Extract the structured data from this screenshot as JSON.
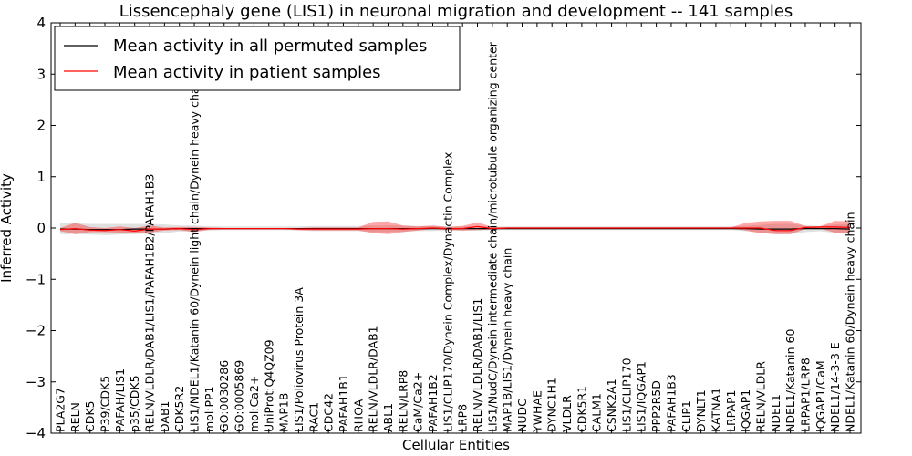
{
  "chart_data": {
    "type": "line",
    "title": "Lissencephaly gene (LIS1) in neuronal migration and development -- 141 samples",
    "xlabel": "Cellular Entities",
    "ylabel": "Inferred Activity",
    "ylim": [
      -4,
      4
    ],
    "yticks": [
      -4,
      -3,
      -2,
      -1,
      0,
      1,
      2,
      3,
      4
    ],
    "ytick_labels": [
      "−4",
      "−3",
      "−2",
      "−1",
      "0",
      "1",
      "2",
      "3",
      "4"
    ],
    "grid": false,
    "legend_position": "top-left",
    "categories": [
      "PLA2G7",
      "RELN",
      "CDK5",
      "P39/CDK5",
      "PAFAH/LIS1",
      "p35/CDK5",
      "RELN/VLDLR/DAB1/LIS1/PAFAH1B2/PAFAH1B3",
      "DAB1",
      "CDK5R2",
      "LIS1/NDEL1/Katanin 60/Dynein light chain/Dynein heavy chain",
      "mol:PP1",
      "GO:0030286",
      "GO:0005869",
      "mol:Ca2+",
      "UniProt:Q4QZ09",
      "MAP1B",
      "LIS1/Poliovirus Protein 3A",
      "RAC1",
      "CDC42",
      "PAFAH1B1",
      "RHOA",
      "RELN/VLDLR/DAB1",
      "ABL1",
      "RELN/LRP8",
      "CaM/Ca2+",
      "PAFAH1B2",
      "LIS1/CLIP170/Dynein Complex/Dynactin Complex",
      "LRP8",
      "RELN/VLDLR/DAB1/LIS1",
      "LIS1/NudC/Dynein intermediate chain/microtubule organizing center",
      "MAP1B/LIS1/Dynein heavy chain",
      "NUDC",
      "YWHAE",
      "DYNC1H1",
      "VLDLR",
      "CDK5R1",
      "CALM1",
      "CSNK2A1",
      "LIS1/CLIP170",
      "LIS1/IQGAP1",
      "PPP2R5D",
      "PAFAH1B3",
      "CLIP1",
      "DYNLT1",
      "KATNA1",
      "LRPAP1",
      "IQGAP1",
      "RELN/VLDLR",
      "NDEL1",
      "NDEL1/Katanin 60",
      "LRPAP1/LRP8",
      "IQGAP1/CaM",
      "NDEL1/14-3-3 E",
      "NDEL1/Katanin 60/Dynein heavy chain"
    ],
    "series": [
      {
        "name": "Mean activity in all permuted samples",
        "color": "#000000",
        "band_color": "#bbbbbb",
        "values": [
          -0.02,
          -0.02,
          -0.03,
          -0.03,
          -0.03,
          -0.02,
          -0.02,
          -0.02,
          -0.01,
          -0.01,
          -0.01,
          -0.01,
          -0.01,
          -0.01,
          -0.01,
          -0.01,
          -0.01,
          -0.01,
          -0.01,
          -0.01,
          -0.01,
          -0.01,
          -0.01,
          -0.01,
          -0.01,
          -0.01,
          -0.01,
          -0.01,
          -0.01,
          -0.01,
          -0.01,
          -0.01,
          -0.01,
          -0.01,
          -0.01,
          -0.01,
          -0.01,
          -0.01,
          -0.01,
          -0.01,
          -0.01,
          -0.01,
          -0.01,
          -0.01,
          -0.01,
          -0.01,
          -0.01,
          -0.02,
          -0.02,
          -0.02,
          -0.01,
          -0.01,
          -0.01,
          -0.02
        ],
        "lower": [
          -0.12,
          -0.12,
          -0.13,
          -0.14,
          -0.13,
          -0.12,
          -0.11,
          -0.1,
          -0.07,
          -0.07,
          -0.05,
          -0.04,
          -0.04,
          -0.04,
          -0.04,
          -0.04,
          -0.05,
          -0.06,
          -0.06,
          -0.06,
          -0.06,
          -0.08,
          -0.08,
          -0.07,
          -0.06,
          -0.06,
          -0.05,
          -0.05,
          -0.05,
          -0.04,
          -0.04,
          -0.04,
          -0.04,
          -0.04,
          -0.04,
          -0.04,
          -0.04,
          -0.04,
          -0.04,
          -0.04,
          -0.04,
          -0.04,
          -0.04,
          -0.04,
          -0.04,
          -0.04,
          -0.06,
          -0.09,
          -0.12,
          -0.12,
          -0.08,
          -0.06,
          -0.1,
          -0.12
        ],
        "upper": [
          0.09,
          0.09,
          0.08,
          0.08,
          0.08,
          0.08,
          0.08,
          0.07,
          0.05,
          0.05,
          0.03,
          0.03,
          0.03,
          0.03,
          0.03,
          0.03,
          0.03,
          0.04,
          0.04,
          0.04,
          0.04,
          0.05,
          0.05,
          0.05,
          0.04,
          0.04,
          0.03,
          0.03,
          0.03,
          0.03,
          0.03,
          0.03,
          0.03,
          0.03,
          0.03,
          0.03,
          0.03,
          0.03,
          0.03,
          0.03,
          0.03,
          0.03,
          0.03,
          0.03,
          0.03,
          0.03,
          0.04,
          0.06,
          0.08,
          0.08,
          0.05,
          0.04,
          0.07,
          0.08
        ]
      },
      {
        "name": "Mean activity in patient samples",
        "color": "#ff0000",
        "band_color": "#ff0000",
        "values": [
          -0.03,
          -0.01,
          -0.04,
          -0.05,
          -0.03,
          -0.06,
          -0.02,
          -0.02,
          -0.01,
          -0.03,
          -0.01,
          -0.01,
          -0.01,
          -0.01,
          -0.01,
          -0.01,
          -0.02,
          -0.02,
          -0.02,
          -0.02,
          -0.02,
          -0.01,
          -0.01,
          -0.02,
          -0.01,
          0.0,
          -0.01,
          -0.01,
          0.03,
          -0.01,
          0.0,
          0.0,
          0.0,
          0.0,
          0.0,
          0.0,
          0.0,
          0.0,
          0.0,
          0.0,
          0.0,
          0.0,
          0.0,
          0.0,
          0.0,
          0.0,
          0.0,
          0.0,
          -0.05,
          -0.05,
          0.01,
          0.02,
          0.02,
          0.01
        ],
        "lower": [
          -0.06,
          -0.12,
          -0.08,
          -0.08,
          -0.09,
          -0.1,
          -0.09,
          -0.05,
          -0.04,
          -0.08,
          -0.03,
          -0.02,
          -0.02,
          -0.02,
          -0.02,
          -0.02,
          -0.04,
          -0.05,
          -0.05,
          -0.05,
          -0.05,
          -0.1,
          -0.12,
          -0.08,
          -0.05,
          -0.02,
          -0.04,
          -0.05,
          -0.04,
          -0.03,
          -0.01,
          -0.01,
          -0.01,
          -0.01,
          -0.01,
          -0.01,
          -0.01,
          -0.01,
          -0.01,
          -0.01,
          -0.01,
          -0.01,
          -0.01,
          -0.01,
          -0.01,
          -0.01,
          -0.05,
          -0.1,
          -0.12,
          -0.12,
          -0.02,
          -0.01,
          -0.09,
          -0.1
        ],
        "upper": [
          0.0,
          0.1,
          0.02,
          0.0,
          0.03,
          0.0,
          0.05,
          0.01,
          0.02,
          0.02,
          0.01,
          0.0,
          0.0,
          0.0,
          0.0,
          0.0,
          0.0,
          0.01,
          0.01,
          0.01,
          0.01,
          0.12,
          0.13,
          0.05,
          0.03,
          0.05,
          0.02,
          0.04,
          0.11,
          0.02,
          0.01,
          0.01,
          0.01,
          0.01,
          0.01,
          0.01,
          0.01,
          0.01,
          0.01,
          0.01,
          0.01,
          0.01,
          0.01,
          0.01,
          0.01,
          0.01,
          0.1,
          0.13,
          0.14,
          0.14,
          0.04,
          0.03,
          0.14,
          0.13
        ]
      }
    ]
  }
}
